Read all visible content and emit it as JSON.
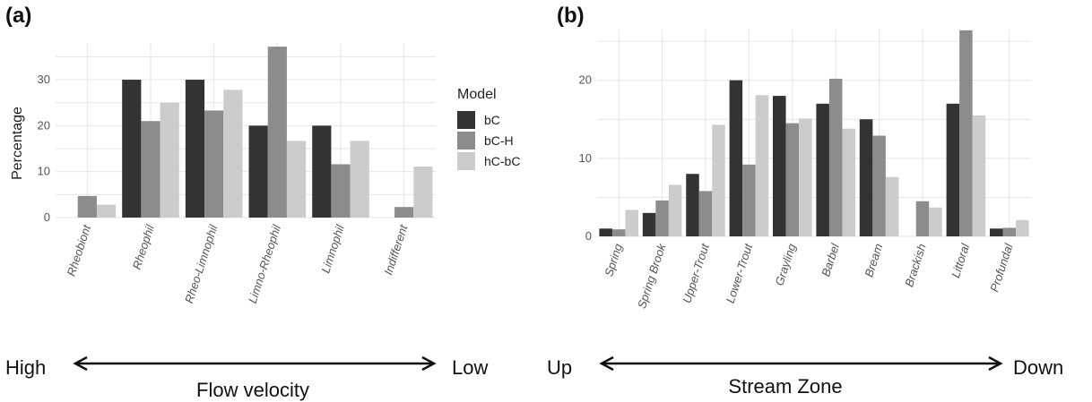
{
  "colors": {
    "bC": "#333333",
    "bC-H": "#8c8c8c",
    "hC-bC": "#cccccc"
  },
  "legend": {
    "title": "Model",
    "items": [
      "bC",
      "bC-H",
      "hC-bC"
    ]
  },
  "annotations": {
    "a": {
      "left": "High",
      "right": "Low",
      "caption": "Flow velocity"
    },
    "b": {
      "left": "Up",
      "right": "Down",
      "caption": "Stream Zone"
    }
  },
  "chart_data": [
    {
      "panel": "(a)",
      "type": "bar",
      "ylabel": "Percentage",
      "ylim": [
        0,
        38
      ],
      "yticks": [
        0,
        10,
        20,
        30
      ],
      "grid": true,
      "legend_position": "right",
      "categories": [
        "Rheobiont",
        "Rheophil",
        "Rheo-Limnophil",
        "Limno-Rheophil",
        "Limnophil",
        "Indifferent"
      ],
      "series": [
        {
          "name": "bC",
          "values": [
            0,
            30,
            30,
            20,
            20,
            0
          ]
        },
        {
          "name": "bC-H",
          "values": [
            4.7,
            21,
            23.3,
            37.2,
            11.6,
            2.3
          ]
        },
        {
          "name": "hC-bC",
          "values": [
            2.8,
            25,
            27.8,
            16.7,
            16.7,
            11.1
          ]
        }
      ]
    },
    {
      "panel": "(b)",
      "type": "bar",
      "ylabel": "",
      "ylim": [
        0,
        26.5
      ],
      "yticks": [
        0,
        10,
        20
      ],
      "grid": true,
      "categories": [
        "Spring",
        "Spring Brook",
        "Upper-Trout",
        "Lower-Trout",
        "Grayling",
        "Barbel",
        "Bream",
        "Brackish",
        "Littoral",
        "Profundal"
      ],
      "series": [
        {
          "name": "bC",
          "values": [
            1,
            3,
            8,
            20,
            18,
            17,
            15,
            0,
            17,
            1
          ]
        },
        {
          "name": "bC-H",
          "values": [
            0.9,
            4.6,
            5.8,
            9.2,
            14.5,
            20.2,
            12.9,
            4.5,
            26.4,
            1.1
          ]
        },
        {
          "name": "hC-bC",
          "values": [
            3.4,
            6.6,
            14.3,
            18.1,
            15.1,
            13.8,
            7.6,
            3.7,
            15.5,
            2.1
          ]
        }
      ]
    }
  ]
}
